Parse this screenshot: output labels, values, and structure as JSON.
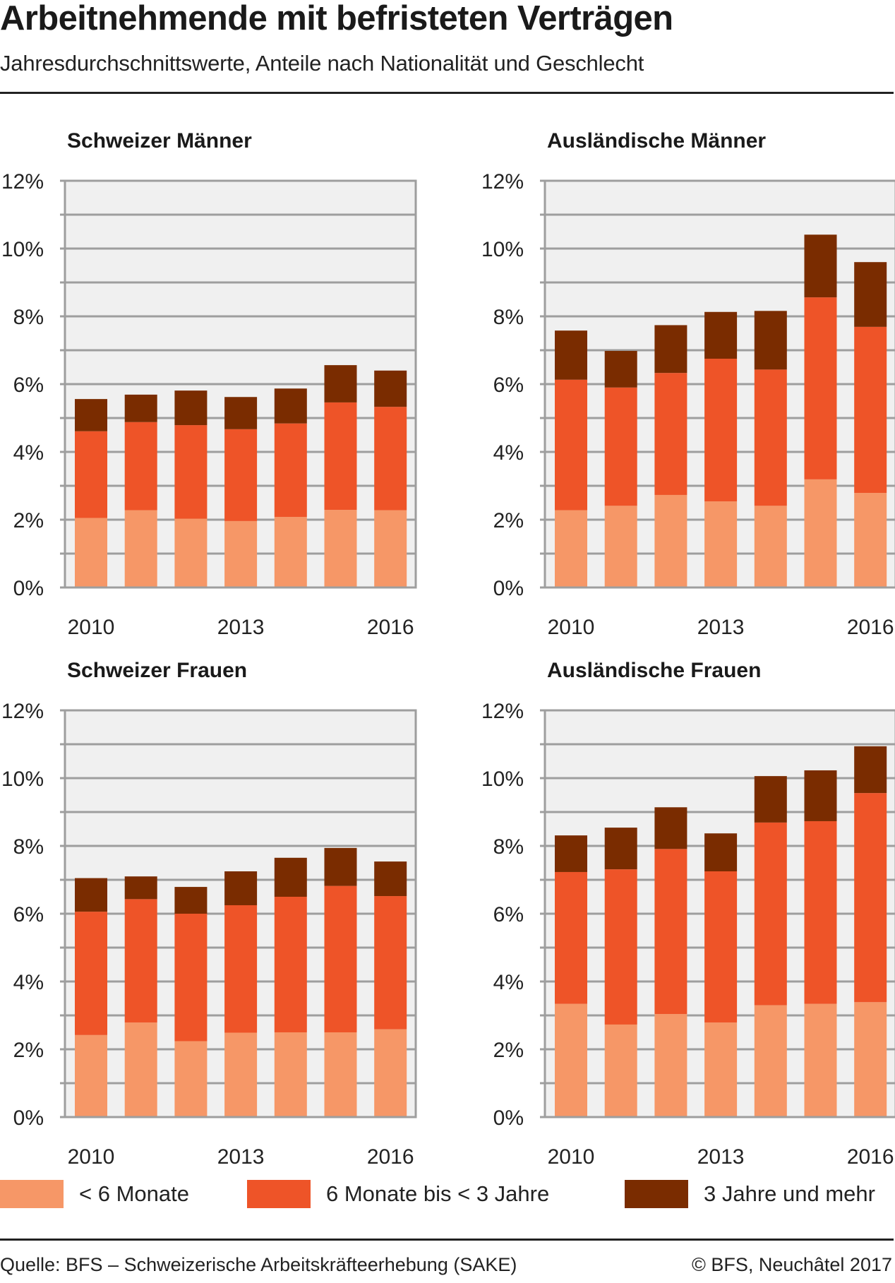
{
  "header": {
    "title": "Arbeitnehmende mit befristeten Verträgen",
    "subtitle": "Jahresdurchschnittswerte, Anteile nach Nationalität und Geschlecht"
  },
  "legend": [
    {
      "label": "< 6 Monate",
      "color": "#F69767"
    },
    {
      "label": "6 Monate bis < 3 Jahre",
      "color": "#EE5428"
    },
    {
      "label": "3 Jahre und mehr",
      "color": "#7A2C00"
    }
  ],
  "footer": {
    "source": "Quelle: BFS – Schweizerische Arbeitskräfteerhebung (SAKE)",
    "copyright": "© BFS, Neuchâtel 2017"
  },
  "colors": {
    "plot_background": "#F0F0F0",
    "grid": "#9E9E9E"
  },
  "chart_data": [
    {
      "type": "bar",
      "stacked": true,
      "title": "Schweizer Männer",
      "categories": [
        "2010",
        "2011",
        "2012",
        "2013",
        "2014",
        "2015",
        "2016"
      ],
      "x_tick_labels": [
        "2010",
        "2013",
        "2016"
      ],
      "y_tick_labels": [
        "0%",
        "2%",
        "4%",
        "6%",
        "8%",
        "10%",
        "12%"
      ],
      "ylim": [
        0,
        12
      ],
      "yunit": "%",
      "grid": true,
      "legend_position": "bottom",
      "series": [
        {
          "name": "< 6 Monate",
          "values": [
            2.05,
            2.28,
            2.03,
            1.96,
            2.08,
            2.29,
            2.28
          ]
        },
        {
          "name": "6 Monate bis < 3 Jahre",
          "values": [
            2.56,
            2.6,
            2.76,
            2.71,
            2.76,
            3.17,
            3.05
          ]
        },
        {
          "name": "3 Jahre und mehr",
          "values": [
            0.95,
            0.81,
            1.02,
            0.95,
            1.03,
            1.1,
            1.07
          ]
        }
      ]
    },
    {
      "type": "bar",
      "stacked": true,
      "title": "Ausländische Männer",
      "categories": [
        "2010",
        "2011",
        "2012",
        "2013",
        "2014",
        "2015",
        "2016"
      ],
      "x_tick_labels": [
        "2010",
        "2013",
        "2016"
      ],
      "y_tick_labels": [
        "0%",
        "2%",
        "4%",
        "6%",
        "8%",
        "10%",
        "12%"
      ],
      "ylim": [
        0,
        12
      ],
      "yunit": "%",
      "grid": true,
      "legend_position": "bottom",
      "series": [
        {
          "name": "< 6 Monate",
          "values": [
            2.28,
            2.41,
            2.73,
            2.54,
            2.41,
            3.19,
            2.79
          ]
        },
        {
          "name": "6 Monate bis < 3 Jahre",
          "values": [
            3.85,
            3.49,
            3.6,
            4.21,
            4.02,
            5.37,
            4.9
          ]
        },
        {
          "name": "3 Jahre und mehr",
          "values": [
            1.45,
            1.08,
            1.41,
            1.38,
            1.73,
            1.85,
            1.91
          ]
        }
      ]
    },
    {
      "type": "bar",
      "stacked": true,
      "title": "Schweizer Frauen",
      "categories": [
        "2010",
        "2011",
        "2012",
        "2013",
        "2014",
        "2015",
        "2016"
      ],
      "x_tick_labels": [
        "2010",
        "2013",
        "2016"
      ],
      "y_tick_labels": [
        "0%",
        "2%",
        "4%",
        "6%",
        "8%",
        "10%",
        "12%"
      ],
      "ylim": [
        0,
        12
      ],
      "yunit": "%",
      "grid": true,
      "legend_position": "bottom",
      "series": [
        {
          "name": "< 6 Monate",
          "values": [
            2.42,
            2.79,
            2.24,
            2.49,
            2.5,
            2.5,
            2.59
          ]
        },
        {
          "name": "6 Monate bis < 3 Jahre",
          "values": [
            3.64,
            3.64,
            3.76,
            3.76,
            4.0,
            4.32,
            3.93
          ]
        },
        {
          "name": "3 Jahre und mehr",
          "values": [
            0.99,
            0.67,
            0.79,
            1.0,
            1.15,
            1.12,
            1.02
          ]
        }
      ]
    },
    {
      "type": "bar",
      "stacked": true,
      "title": "Ausländische Frauen",
      "categories": [
        "2010",
        "2011",
        "2012",
        "2013",
        "2014",
        "2015",
        "2016"
      ],
      "x_tick_labels": [
        "2010",
        "2013",
        "2016"
      ],
      "y_tick_labels": [
        "0%",
        "2%",
        "4%",
        "6%",
        "8%",
        "10%",
        "12%"
      ],
      "ylim": [
        0,
        12
      ],
      "yunit": "%",
      "grid": true,
      "legend_position": "bottom",
      "series": [
        {
          "name": "< 6 Monate",
          "values": [
            3.34,
            2.73,
            3.04,
            2.79,
            3.3,
            3.34,
            3.39
          ]
        },
        {
          "name": "6 Monate bis < 3 Jahre",
          "values": [
            3.89,
            4.58,
            4.87,
            4.46,
            5.39,
            5.39,
            6.17
          ]
        },
        {
          "name": "3 Jahre und mehr",
          "values": [
            1.08,
            1.23,
            1.23,
            1.12,
            1.37,
            1.5,
            1.38
          ]
        }
      ]
    }
  ]
}
